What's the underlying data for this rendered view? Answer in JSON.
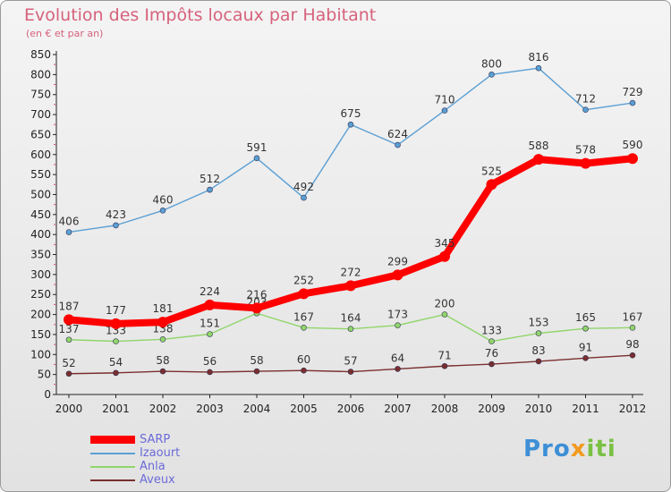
{
  "title": "Evolution des Impôts locaux par Habitant",
  "subtitle": "(en € et par an)",
  "brand": {
    "p1": "Pro",
    "p2": "x",
    "p3": "iti"
  },
  "chart_data": {
    "type": "line",
    "title": "Evolution des Impôts locaux par Habitant",
    "subtitle": "(en € et par an)",
    "xlabel": "",
    "ylabel": "",
    "ylim": [
      0,
      850
    ],
    "yticks": [
      0,
      50,
      100,
      150,
      200,
      250,
      300,
      350,
      400,
      450,
      500,
      550,
      600,
      650,
      700,
      750,
      800,
      850
    ],
    "x": [
      "2000",
      "2001",
      "2002",
      "2003",
      "2004",
      "2005",
      "2006",
      "2007",
      "2008",
      "2009",
      "2010",
      "2011",
      "2012"
    ],
    "grid": false,
    "legend_position": "bottom-left",
    "series": [
      {
        "name": "SARP",
        "color": "#ff0000",
        "values": [
          187,
          177,
          181,
          224,
          216,
          252,
          272,
          299,
          345,
          525,
          588,
          578,
          590
        ]
      },
      {
        "name": "Izaourt",
        "color": "#5a9fd4",
        "values": [
          406,
          423,
          460,
          512,
          591,
          492,
          675,
          624,
          710,
          800,
          816,
          712,
          729
        ]
      },
      {
        "name": "Anla",
        "color": "#90d56a",
        "values": [
          137,
          133,
          138,
          151,
          203,
          167,
          164,
          173,
          200,
          133,
          153,
          165,
          167
        ]
      },
      {
        "name": "Aveux",
        "color": "#7a2e2e",
        "values": [
          52,
          54,
          58,
          56,
          58,
          60,
          57,
          64,
          71,
          76,
          83,
          91,
          98
        ]
      }
    ]
  }
}
